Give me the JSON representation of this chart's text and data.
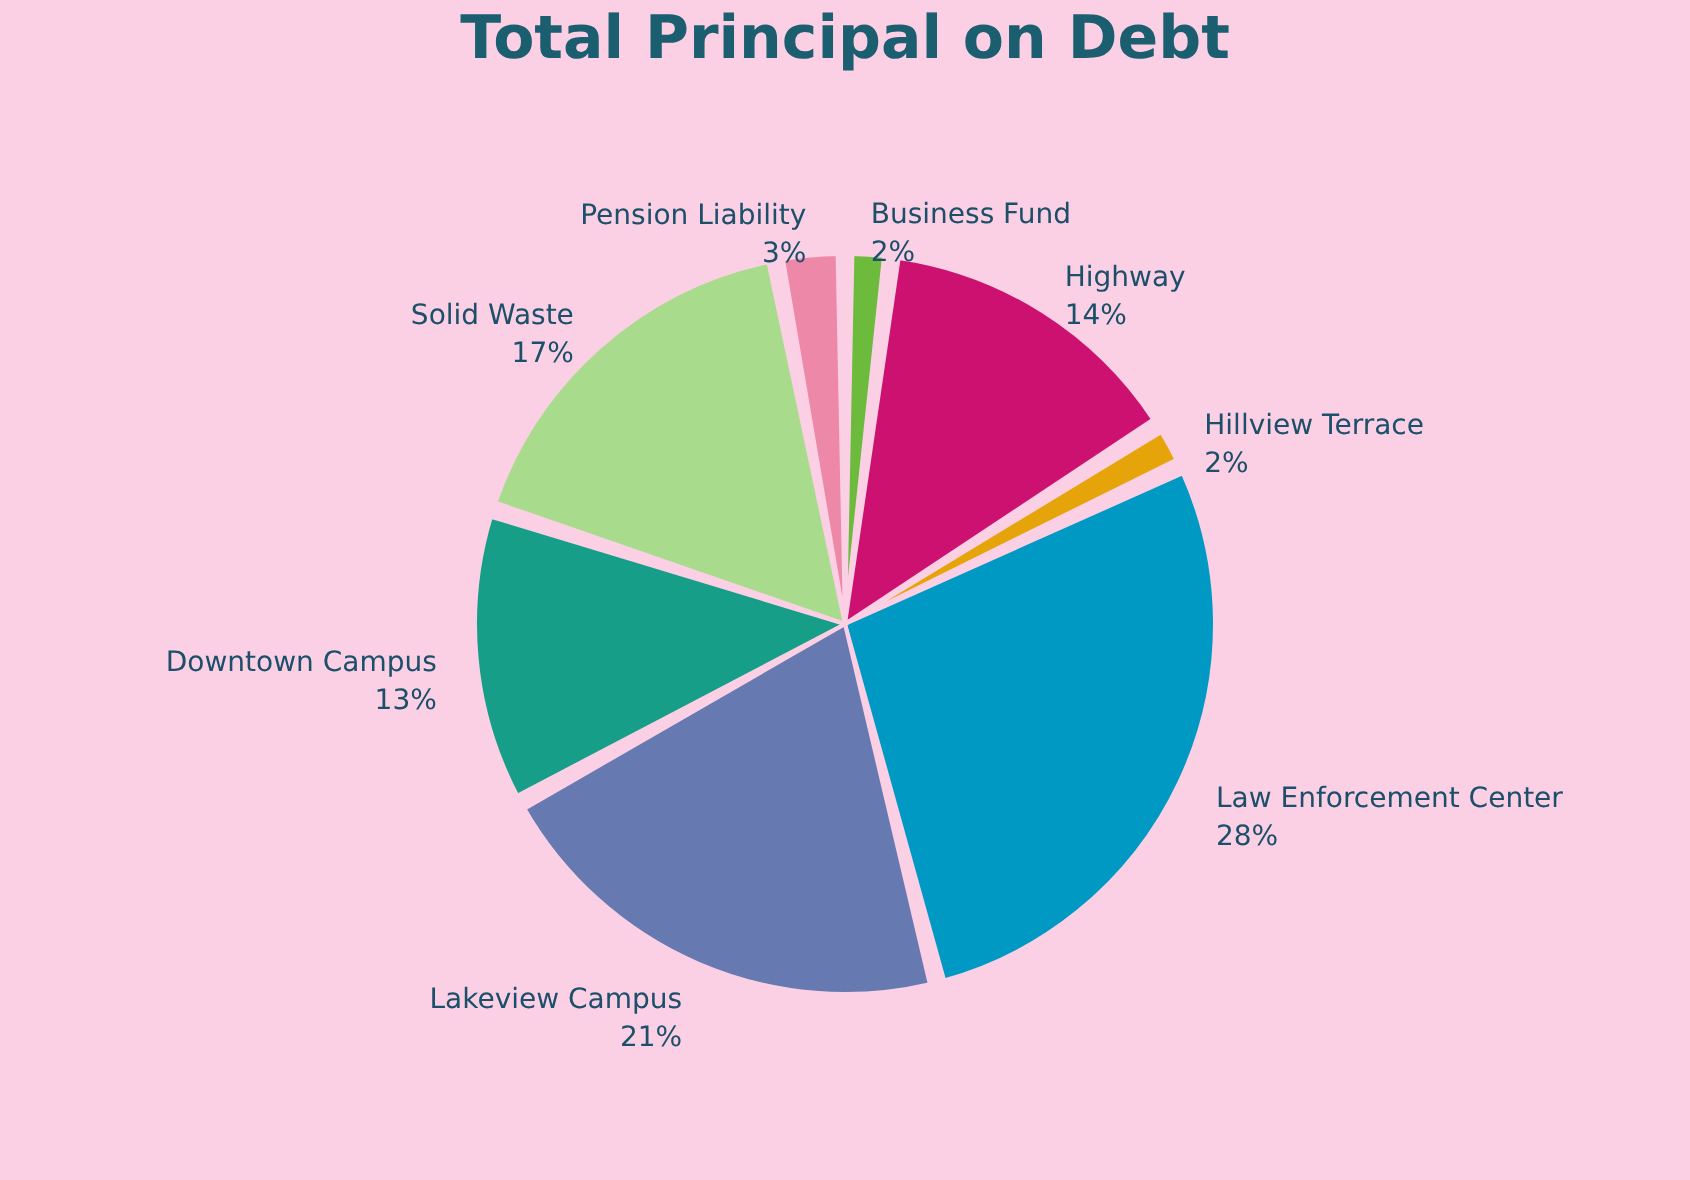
{
  "chart_data": {
    "type": "pie",
    "title": "Total Principal on Debt",
    "categories": [
      "Business Fund",
      "Highway",
      "Hillview Terrace",
      "Law Enforcement Center",
      "Lakeview Campus",
      "Downtown Campus",
      "Solid Waste",
      "Pension Liability"
    ],
    "values": [
      2,
      14,
      2,
      28,
      21,
      13,
      17,
      3
    ],
    "value_labels": [
      "2%",
      "14%",
      "2%",
      "28%",
      "21%",
      "13%",
      "17%",
      "3%"
    ],
    "colors": [
      "#6cbb3c",
      "#cc1170",
      "#e5a50a",
      "#0099c4",
      "#6679b1",
      "#169e88",
      "#a8dc8c",
      "#ee88a8"
    ]
  }
}
